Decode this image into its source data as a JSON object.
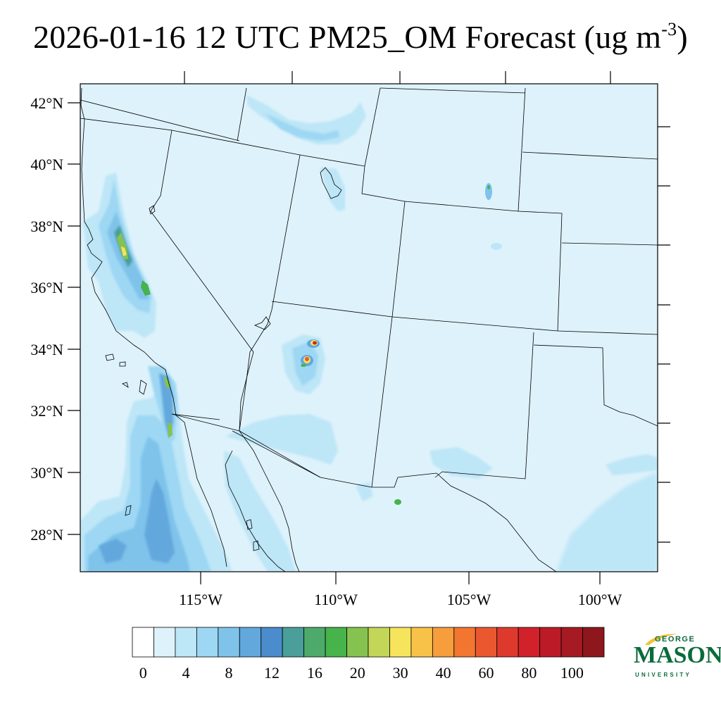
{
  "title": {
    "prefix": "2026-01-16 12 UTC PM25_OM Forecast (ug m",
    "superscript": "-3",
    "suffix": ")"
  },
  "map": {
    "projection": "lambert-conformal",
    "region": "Southwestern United States and northwestern Mexico",
    "lat_labels": [
      "42°N",
      "40°N",
      "38°N",
      "36°N",
      "34°N",
      "32°N",
      "30°N",
      "28°N"
    ],
    "lon_labels": [
      "115°W",
      "110°W",
      "105°W",
      "100°W"
    ],
    "background_color": "#def2fb",
    "hotspots": [
      {
        "name": "central-arizona-fire-north",
        "lat": 34.2,
        "lon": -110.8,
        "max_category": "80-100"
      },
      {
        "name": "central-arizona-fire-south",
        "lat": 33.7,
        "lon": -110.9,
        "max_category": "60-80"
      },
      {
        "name": "southern-sierra-nevada",
        "lat": 37.2,
        "lon": -119.3,
        "max_category": "25-30"
      },
      {
        "name": "southern-california-coast",
        "lat": 33.0,
        "lon": -117.0,
        "max_category": "20-25"
      }
    ]
  },
  "colorbar": {
    "labels": [
      "0",
      "4",
      "8",
      "12",
      "16",
      "20",
      "30",
      "40",
      "60",
      "80",
      "100"
    ],
    "colors": [
      "#ffffff",
      "#def2fb",
      "#bde6f7",
      "#9dd7f3",
      "#7fc3eb",
      "#63a8dd",
      "#4a8ccc",
      "#4a9f9a",
      "#4daa6a",
      "#46b34b",
      "#86c250",
      "#c3d657",
      "#f6e45d",
      "#f8c249",
      "#f69d3c",
      "#f27630",
      "#ea5830",
      "#dd3a2d",
      "#d1222b",
      "#bb1b27",
      "#a51a23",
      "#8e161d"
    ]
  },
  "logo": {
    "line1": "GEORGE",
    "line2": "MASON",
    "line3": "UNIVERSITY",
    "color": "#0a6b3a",
    "accent": "#f2c230"
  }
}
